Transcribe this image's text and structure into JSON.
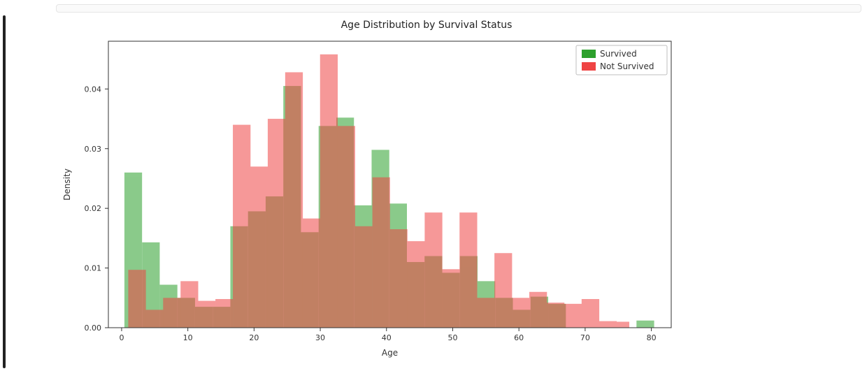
{
  "chart": {
    "type": "overlaid-histogram",
    "title": "Age Distribution by Survival Status",
    "title_fontsize": 14,
    "xlabel": "Age",
    "ylabel": "Density",
    "label_fontsize": 12,
    "tick_fontsize": 11,
    "background_color": "#ffffff",
    "axis_color": "#333333",
    "xlim": [
      -2,
      83
    ],
    "ylim": [
      0,
      0.048
    ],
    "xticks": [
      0,
      10,
      20,
      30,
      40,
      50,
      60,
      70,
      80
    ],
    "yticks": [
      0.0,
      0.01,
      0.02,
      0.03,
      0.04
    ],
    "ytick_labels": [
      "0.00",
      "0.01",
      "0.02",
      "0.03",
      "0.04"
    ],
    "bin_width": 2.667,
    "bar_alpha": 0.55,
    "legend": {
      "position": "upper-right",
      "border_color": "#bfbfbf",
      "background_color": "#ffffff",
      "items": [
        {
          "label": "Survived",
          "color": "#2ca02c"
        },
        {
          "label": "Not Survived",
          "color": "#ef4444"
        }
      ]
    },
    "series": [
      {
        "name": "Survived",
        "color": "#2ca02c",
        "bins_start": [
          0.42,
          3.087,
          5.753,
          8.42,
          11.087,
          13.753,
          16.42,
          19.087,
          21.753,
          24.42,
          27.087,
          29.753,
          32.42,
          35.087,
          37.753,
          40.42,
          43.087,
          45.753,
          48.42,
          51.087,
          53.753,
          56.42,
          59.087,
          61.753,
          64.42,
          67.087,
          69.753,
          72.42,
          75.087,
          77.753
        ],
        "density": [
          0.026,
          0.0143,
          0.0072,
          0.005,
          0.0035,
          0.0035,
          0.017,
          0.0195,
          0.022,
          0.0405,
          0.016,
          0.0338,
          0.0352,
          0.0205,
          0.0298,
          0.0208,
          0.011,
          0.012,
          0.0092,
          0.012,
          0.0078,
          0.005,
          0.003,
          0.0052,
          0.004,
          0.0,
          0.0,
          0.0,
          0.0,
          0.0012
        ]
      },
      {
        "name": "Not Survived",
        "color": "#ef4444",
        "bins_start": [
          1.0,
          3.633,
          6.267,
          8.9,
          11.533,
          14.167,
          16.8,
          19.433,
          22.067,
          24.7,
          27.333,
          29.967,
          32.6,
          35.233,
          37.867,
          40.5,
          43.133,
          45.767,
          48.4,
          51.033,
          53.667,
          56.3,
          58.933,
          61.567,
          64.2,
          66.833,
          69.467,
          72.1,
          74.0
        ],
        "density": [
          0.0097,
          0.003,
          0.005,
          0.0078,
          0.0045,
          0.0048,
          0.034,
          0.027,
          0.035,
          0.0428,
          0.0183,
          0.0458,
          0.0338,
          0.017,
          0.0252,
          0.0165,
          0.0145,
          0.0193,
          0.0098,
          0.0193,
          0.005,
          0.0125,
          0.005,
          0.006,
          0.0042,
          0.004,
          0.0048,
          0.0011,
          0.001
        ]
      }
    ]
  }
}
